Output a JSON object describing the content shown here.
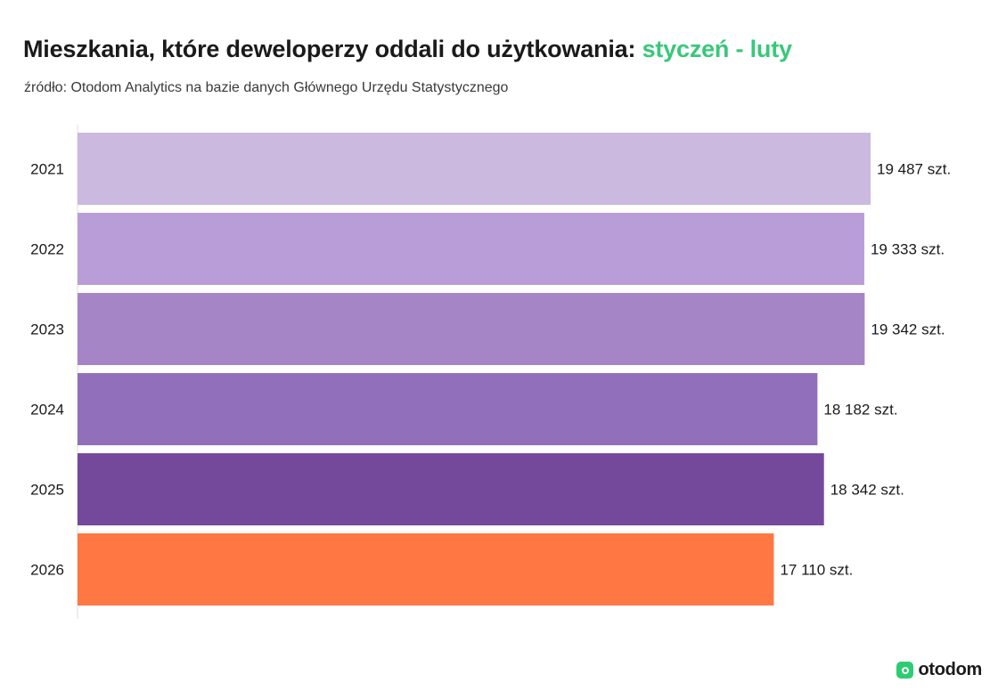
{
  "header": {
    "title_main": "Mieszkania, które deweloperzy oddali do użytkowania:",
    "title_accent": "styczeń - luty",
    "accent_color": "#38c87a",
    "source": "źródło: Otodom Analytics na bazie danych Głównego Urzędu Statystycznego"
  },
  "chart_data": {
    "type": "bar",
    "orientation": "horizontal",
    "title": "Mieszkania, które deweloperzy oddali do użytkowania: styczeń - luty",
    "categories": [
      "2021",
      "2022",
      "2023",
      "2024",
      "2025",
      "2026"
    ],
    "values": [
      19487,
      19333,
      19342,
      18182,
      18342,
      17110
    ],
    "value_labels": [
      "19 487 szt.",
      "19 333 szt.",
      "19 342 szt.",
      "18 182 szt.",
      "18 342 szt.",
      "17 110 szt."
    ],
    "colors": [
      "#cbb9df",
      "#b99dd8",
      "#a685c7",
      "#916fbb",
      "#74499c",
      "#ff7743"
    ],
    "xlim": [
      0,
      19487
    ],
    "grid": false,
    "legend": "none"
  },
  "brand": {
    "logo_text": "otodom",
    "logo_color": "#2ecc71",
    "logo_icon": "otodom-logo-icon"
  }
}
